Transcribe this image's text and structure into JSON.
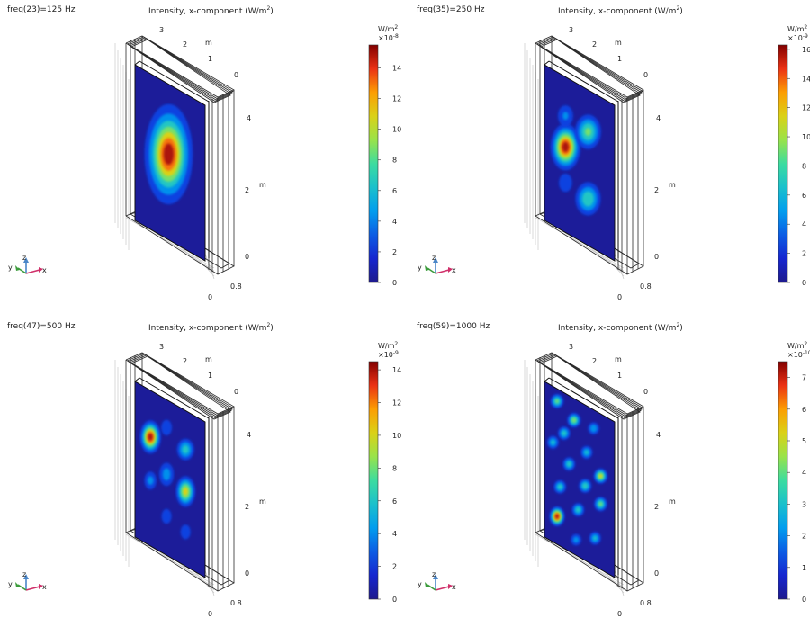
{
  "chart_data": [
    {
      "type": "heatmap",
      "label": "freq(23)=125 Hz",
      "title_base": "Intensity, x-component (W/m",
      "title_sup": "2",
      "title_end": ")",
      "colorbar": {
        "unit_base": "W/m",
        "unit_sup": "2",
        "scale_base": "×10",
        "scale_exp": "-8",
        "min": 0,
        "max": 15.5,
        "ticks": [
          "0",
          "2",
          "4",
          "6",
          "8",
          "10",
          "12",
          "14"
        ]
      },
      "peaks": [
        {
          "u": 0.48,
          "v": 0.45,
          "sx": 0.16,
          "sy": 0.15,
          "a": 1.0
        }
      ],
      "axis_labels": {
        "y_top": [
          "3",
          "2",
          "m",
          "1",
          "0"
        ],
        "z_right": [
          "4",
          "m",
          "2",
          "0"
        ],
        "x_bottom": [
          "0",
          "0.8"
        ]
      }
    },
    {
      "type": "heatmap",
      "label": "freq(35)=250 Hz",
      "title_base": "Intensity, x-component (W/m",
      "title_sup": "2",
      "title_end": ")",
      "colorbar": {
        "unit_base": "W/m",
        "unit_sup": "2",
        "scale_base": "×10",
        "scale_exp": "-9",
        "min": 0,
        "max": 16.3,
        "ticks": [
          "0",
          "2",
          "4",
          "6",
          "8",
          "10",
          "12",
          "14",
          "16"
        ]
      },
      "peaks": [
        {
          "u": 0.3,
          "v": 0.45,
          "sx": 0.1,
          "sy": 0.07,
          "a": 1.0
        },
        {
          "u": 0.62,
          "v": 0.27,
          "sx": 0.1,
          "sy": 0.06,
          "a": 0.55
        },
        {
          "u": 0.62,
          "v": 0.7,
          "sx": 0.1,
          "sy": 0.06,
          "a": 0.5
        },
        {
          "u": 0.3,
          "v": 0.25,
          "sx": 0.08,
          "sy": 0.05,
          "a": 0.25
        },
        {
          "u": 0.3,
          "v": 0.68,
          "sx": 0.08,
          "sy": 0.05,
          "a": 0.2
        }
      ],
      "axis_labels": {
        "y_top": [
          "3",
          "2",
          "m",
          "1",
          "0"
        ],
        "z_right": [
          "4",
          "m",
          "2",
          "0"
        ],
        "x_bottom": [
          "0",
          "0.8"
        ]
      }
    },
    {
      "type": "heatmap",
      "label": "freq(47)=500 Hz",
      "title_base": "Intensity, x-component (W/m",
      "title_sup": "2",
      "title_end": ")",
      "colorbar": {
        "unit_base": "W/m",
        "unit_sup": "2",
        "scale_base": "×10",
        "scale_exp": "-9",
        "min": 0,
        "max": 14.5,
        "ticks": [
          "0",
          "2",
          "4",
          "6",
          "8",
          "10",
          "12",
          "14"
        ]
      },
      "peaks": [
        {
          "u": 0.22,
          "v": 0.3,
          "sx": 0.07,
          "sy": 0.05,
          "a": 1.0
        },
        {
          "u": 0.72,
          "v": 0.52,
          "sx": 0.07,
          "sy": 0.05,
          "a": 0.72
        },
        {
          "u": 0.72,
          "v": 0.25,
          "sx": 0.07,
          "sy": 0.04,
          "a": 0.45
        },
        {
          "u": 0.45,
          "v": 0.48,
          "sx": 0.07,
          "sy": 0.05,
          "a": 0.3
        },
        {
          "u": 0.22,
          "v": 0.58,
          "sx": 0.06,
          "sy": 0.04,
          "a": 0.28
        },
        {
          "u": 0.45,
          "v": 0.18,
          "sx": 0.06,
          "sy": 0.04,
          "a": 0.22
        },
        {
          "u": 0.45,
          "v": 0.75,
          "sx": 0.06,
          "sy": 0.04,
          "a": 0.2
        },
        {
          "u": 0.72,
          "v": 0.78,
          "sx": 0.06,
          "sy": 0.04,
          "a": 0.2
        }
      ],
      "axis_labels": {
        "y_top": [
          "3",
          "2",
          "m",
          "1",
          "0"
        ],
        "z_right": [
          "4",
          "m",
          "2",
          "0"
        ],
        "x_bottom": [
          "0",
          "0.8"
        ]
      }
    },
    {
      "type": "heatmap",
      "label": "freq(59)=1000 Hz",
      "title_base": "Intensity, x-component (W/m",
      "title_sup": "2",
      "title_end": ")",
      "colorbar": {
        "unit_base": "W/m",
        "unit_sup": "2",
        "scale_base": "×10",
        "scale_exp": "-10",
        "min": 0,
        "max": 7.5,
        "ticks": [
          "0",
          "1",
          "2",
          "3",
          "4",
          "5",
          "6",
          "7"
        ]
      },
      "peaks": [
        {
          "u": 0.18,
          "v": 0.08,
          "sx": 0.05,
          "sy": 0.025,
          "a": 0.55
        },
        {
          "u": 0.42,
          "v": 0.14,
          "sx": 0.05,
          "sy": 0.025,
          "a": 0.6
        },
        {
          "u": 0.7,
          "v": 0.12,
          "sx": 0.05,
          "sy": 0.025,
          "a": 0.35
        },
        {
          "u": 0.28,
          "v": 0.26,
          "sx": 0.05,
          "sy": 0.025,
          "a": 0.45
        },
        {
          "u": 0.6,
          "v": 0.3,
          "sx": 0.05,
          "sy": 0.025,
          "a": 0.4
        },
        {
          "u": 0.12,
          "v": 0.36,
          "sx": 0.05,
          "sy": 0.025,
          "a": 0.4
        },
        {
          "u": 0.8,
          "v": 0.4,
          "sx": 0.05,
          "sy": 0.025,
          "a": 0.7
        },
        {
          "u": 0.35,
          "v": 0.44,
          "sx": 0.05,
          "sy": 0.025,
          "a": 0.45
        },
        {
          "u": 0.58,
          "v": 0.52,
          "sx": 0.05,
          "sy": 0.025,
          "a": 0.5
        },
        {
          "u": 0.8,
          "v": 0.58,
          "sx": 0.05,
          "sy": 0.025,
          "a": 0.55
        },
        {
          "u": 0.22,
          "v": 0.62,
          "sx": 0.05,
          "sy": 0.025,
          "a": 0.45
        },
        {
          "u": 0.48,
          "v": 0.7,
          "sx": 0.05,
          "sy": 0.025,
          "a": 0.45
        },
        {
          "u": 0.18,
          "v": 0.82,
          "sx": 0.05,
          "sy": 0.03,
          "a": 1.0
        },
        {
          "u": 0.72,
          "v": 0.82,
          "sx": 0.05,
          "sy": 0.025,
          "a": 0.4
        },
        {
          "u": 0.45,
          "v": 0.9,
          "sx": 0.05,
          "sy": 0.025,
          "a": 0.3
        }
      ],
      "axis_labels": {
        "y_top": [
          "3",
          "2",
          "m",
          "1",
          "0"
        ],
        "z_right": [
          "4",
          "m",
          "2",
          "0"
        ],
        "x_bottom": [
          "0",
          "0.8"
        ]
      }
    }
  ],
  "triad": {
    "y": "y",
    "z": "z",
    "x": "x"
  }
}
